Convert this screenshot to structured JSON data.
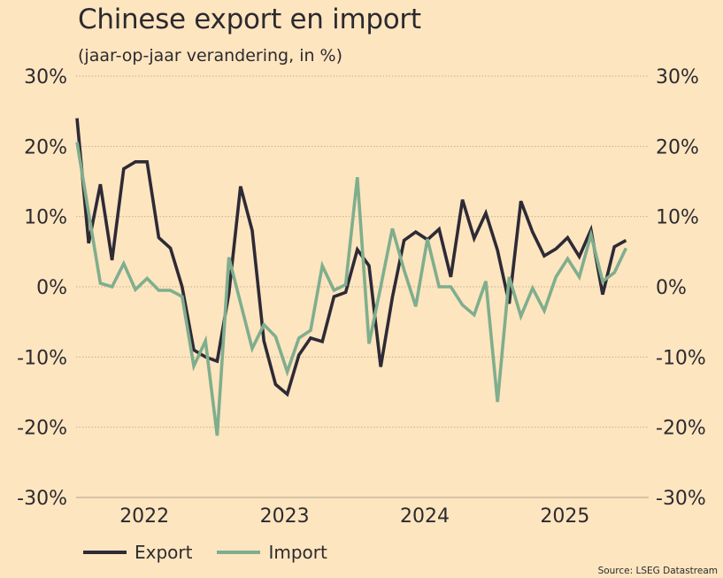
{
  "chart_data": {
    "type": "line",
    "title": "Chinese export en import",
    "subtitle": "(jaar-op-jaar verandering, in %)",
    "xlabel": "",
    "ylabel": "",
    "ylim": [
      -30,
      30
    ],
    "y_ticks": [
      30,
      20,
      10,
      0,
      -10,
      -20,
      -30
    ],
    "y_tick_labels": [
      "30%",
      "20%",
      "10%",
      "0%",
      "-10%",
      "-20%",
      "-30%"
    ],
    "x_tick_labels": [
      "2022",
      "2023",
      "2024",
      "2025"
    ],
    "x_tick_index": [
      6,
      18,
      30,
      42
    ],
    "grid": true,
    "legend_position": "bottom-left",
    "series": [
      {
        "name": "Export",
        "color": "#2e2a36",
        "values": [
          24.0,
          6.2,
          14.6,
          3.8,
          16.8,
          17.8,
          17.8,
          7.0,
          5.5,
          0.0,
          -9.0,
          -10.0,
          -10.6,
          -1.0,
          14.3,
          8.0,
          -7.7,
          -13.9,
          -15.3,
          -9.7,
          -7.3,
          -7.8,
          -1.4,
          -0.8,
          5.3,
          3.0,
          -11.4,
          -1.5,
          6.6,
          7.8,
          6.7,
          8.2,
          1.4,
          12.4,
          6.9,
          10.5,
          5.2,
          -2.4,
          12.2,
          7.8,
          4.4,
          5.4,
          7.0,
          4.3,
          8.1,
          -1.1,
          5.7,
          6.6
        ]
      },
      {
        "name": "Import",
        "color": "#7fae8d",
        "values": [
          20.6,
          10.5,
          0.5,
          0.0,
          3.3,
          -0.4,
          1.2,
          -0.5,
          -0.5,
          -1.4,
          -11.3,
          -7.7,
          -21.2,
          4.2,
          -2.3,
          -8.8,
          -5.4,
          -7.1,
          -12.1,
          -7.3,
          -6.2,
          3.0,
          -0.5,
          0.3,
          15.6,
          -8.1,
          0.0,
          8.3,
          2.4,
          -2.8,
          6.8,
          0.0,
          0.0,
          -2.6,
          -4.0,
          0.8,
          -16.4,
          1.4,
          -4.2,
          -0.2,
          -3.4,
          1.4,
          4.0,
          1.4,
          7.4,
          0.8,
          2.0,
          5.5
        ]
      }
    ]
  },
  "source": "Source: LSEG Datastream"
}
